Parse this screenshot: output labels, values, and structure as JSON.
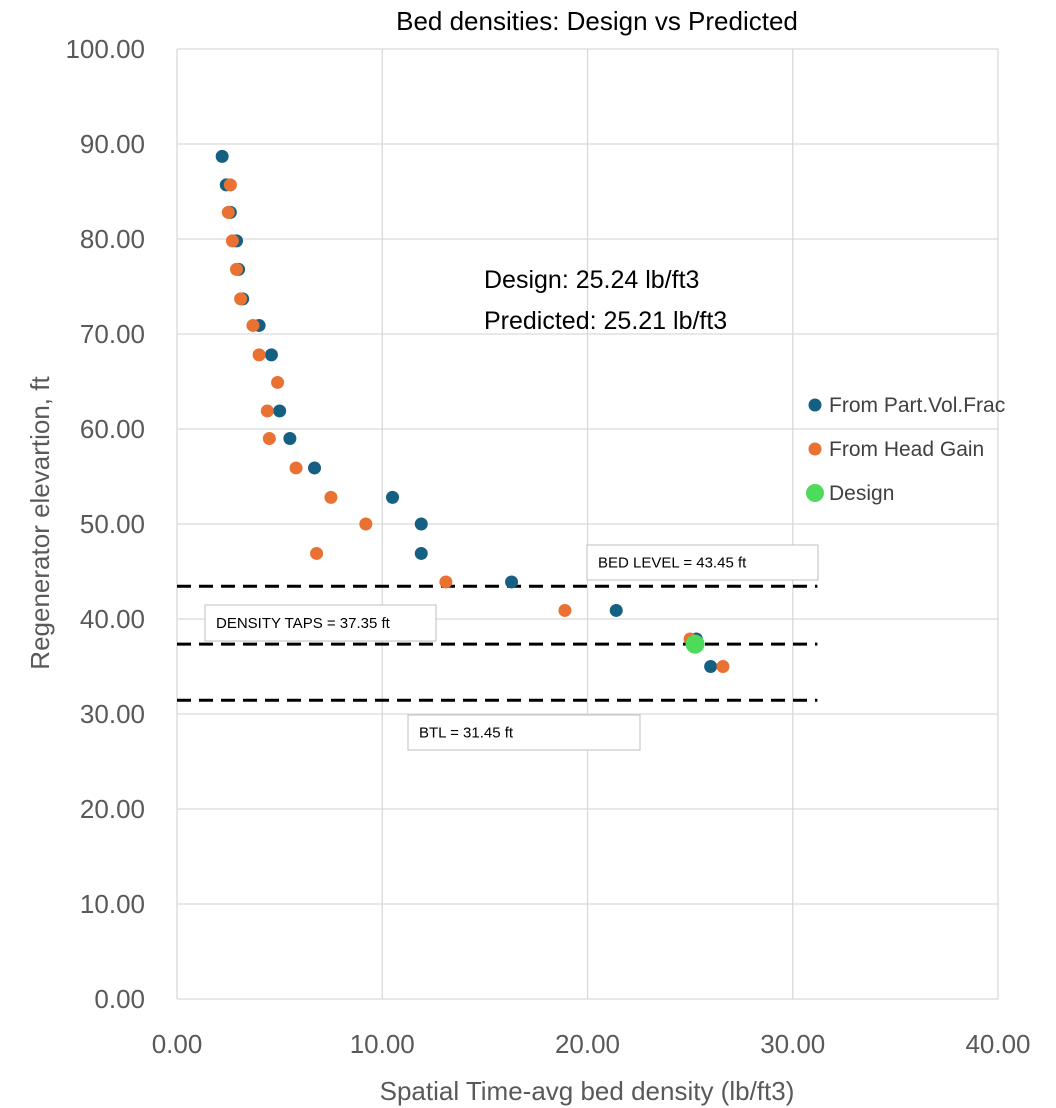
{
  "chart_data": {
    "type": "scatter",
    "title": "Bed densities: Design vs Predicted",
    "xlabel": "Spatial Time-avg bed density (lb/ft3)",
    "ylabel": "Regenerator elevartion, ft",
    "xlim": [
      0,
      40
    ],
    "ylim": [
      0,
      100
    ],
    "x_ticks": [
      "0.00",
      "10.00",
      "20.00",
      "30.00",
      "40.00"
    ],
    "y_ticks": [
      "0.00",
      "10.00",
      "20.00",
      "30.00",
      "40.00",
      "50.00",
      "60.00",
      "70.00",
      "80.00",
      "90.00",
      "100.00"
    ],
    "grid": true,
    "legend_position": "right",
    "series": [
      {
        "name": "From Part.Vol.Frac",
        "color": "#156082",
        "points": [
          [
            2.2,
            88.7
          ],
          [
            2.4,
            85.7
          ],
          [
            2.6,
            82.8
          ],
          [
            2.9,
            79.8
          ],
          [
            3.0,
            76.8
          ],
          [
            3.2,
            73.7
          ],
          [
            4.0,
            70.9
          ],
          [
            4.6,
            67.8
          ],
          [
            5.0,
            61.9
          ],
          [
            5.5,
            59.0
          ],
          [
            6.7,
            55.9
          ],
          [
            10.5,
            52.8
          ],
          [
            11.9,
            50.0
          ],
          [
            11.9,
            46.9
          ],
          [
            16.3,
            43.9
          ],
          [
            21.4,
            40.9
          ],
          [
            25.3,
            37.9
          ],
          [
            26.0,
            35.0
          ]
        ]
      },
      {
        "name": "From Head Gain",
        "color": "#E97132",
        "points": [
          [
            2.6,
            85.7
          ],
          [
            2.5,
            82.8
          ],
          [
            2.7,
            79.8
          ],
          [
            2.9,
            76.8
          ],
          [
            3.1,
            73.7
          ],
          [
            3.7,
            70.9
          ],
          [
            4.0,
            67.8
          ],
          [
            4.9,
            64.9
          ],
          [
            4.4,
            61.9
          ],
          [
            4.5,
            59.0
          ],
          [
            5.8,
            55.9
          ],
          [
            7.5,
            52.8
          ],
          [
            9.2,
            50.0
          ],
          [
            6.8,
            46.9
          ],
          [
            13.1,
            43.9
          ],
          [
            18.9,
            40.9
          ],
          [
            25.0,
            37.9
          ],
          [
            26.6,
            35.0
          ]
        ]
      },
      {
        "name": "Design",
        "color": "#4EDB5B",
        "points": [
          [
            25.24,
            37.35
          ]
        ]
      }
    ],
    "reference_lines": [
      {
        "y": 43.45,
        "x_end": 31.2,
        "label": "BED LEVEL = 43.45 ft"
      },
      {
        "y": 37.35,
        "x_end": 31.2,
        "label": "DENSITY TAPS = 37.35 ft"
      },
      {
        "y": 31.45,
        "x_end": 31.2,
        "label": "BTL = 31.45 ft"
      }
    ],
    "annotations": [
      "Design: 25.24 lb/ft3",
      "Predicted: 25.21 lb/ft3"
    ]
  }
}
